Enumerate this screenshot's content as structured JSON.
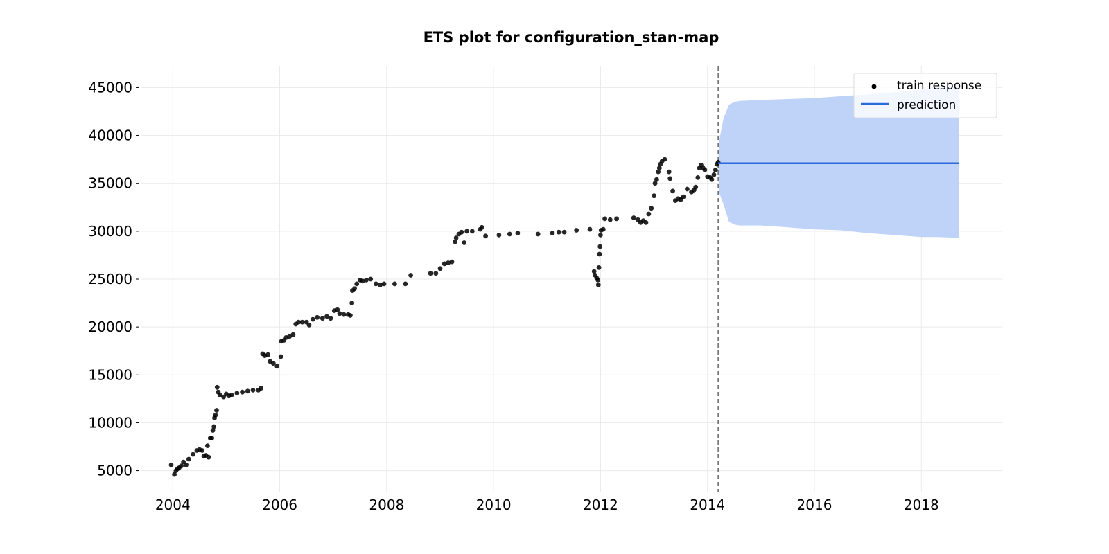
{
  "chart_data": {
    "type": "scatter",
    "title": "ETS plot for configuration_stan-map",
    "xlabel": "",
    "ylabel": "",
    "xlim": [
      2003.4,
      2019.5
    ],
    "ylim": [
      2800,
      47200
    ],
    "x_ticks": [
      "2004",
      "2006",
      "2008",
      "2010",
      "2012",
      "2014",
      "2016",
      "2018"
    ],
    "y_ticks": [
      "5000",
      "10000",
      "15000",
      "20000",
      "25000",
      "30000",
      "35000",
      "40000",
      "45000"
    ],
    "grid": true,
    "legend_position": "top-right",
    "forecast_start": 2014.2,
    "series": [
      {
        "name": "train response",
        "kind": "scatter",
        "color": "#000000",
        "points": [
          [
            2003.97,
            5600
          ],
          [
            2004.03,
            4600
          ],
          [
            2004.06,
            5000
          ],
          [
            2004.09,
            5200
          ],
          [
            2004.12,
            5300
          ],
          [
            2004.16,
            5500
          ],
          [
            2004.2,
            5900
          ],
          [
            2004.25,
            5600
          ],
          [
            2004.3,
            6200
          ],
          [
            2004.38,
            6700
          ],
          [
            2004.45,
            7100
          ],
          [
            2004.5,
            7200
          ],
          [
            2004.55,
            7100
          ],
          [
            2004.58,
            6500
          ],
          [
            2004.62,
            6600
          ],
          [
            2004.65,
            7600
          ],
          [
            2004.67,
            6400
          ],
          [
            2004.7,
            8400
          ],
          [
            2004.73,
            8400
          ],
          [
            2004.75,
            9200
          ],
          [
            2004.77,
            9600
          ],
          [
            2004.78,
            10500
          ],
          [
            2004.8,
            10800
          ],
          [
            2004.82,
            11300
          ],
          [
            2004.83,
            13700
          ],
          [
            2004.85,
            13200
          ],
          [
            2004.88,
            12900
          ],
          [
            2004.95,
            12700
          ],
          [
            2005.0,
            13000
          ],
          [
            2005.05,
            12800
          ],
          [
            2005.1,
            12900
          ],
          [
            2005.2,
            13100
          ],
          [
            2005.3,
            13200
          ],
          [
            2005.4,
            13300
          ],
          [
            2005.5,
            13400
          ],
          [
            2005.6,
            13400
          ],
          [
            2005.65,
            13600
          ],
          [
            2005.68,
            17200
          ],
          [
            2005.72,
            17000
          ],
          [
            2005.78,
            17100
          ],
          [
            2005.82,
            16400
          ],
          [
            2005.88,
            16200
          ],
          [
            2005.95,
            15900
          ],
          [
            2006.02,
            16900
          ],
          [
            2006.03,
            18500
          ],
          [
            2006.08,
            18600
          ],
          [
            2006.12,
            18900
          ],
          [
            2006.18,
            19000
          ],
          [
            2006.25,
            19200
          ],
          [
            2006.3,
            20300
          ],
          [
            2006.35,
            20500
          ],
          [
            2006.42,
            20500
          ],
          [
            2006.5,
            20500
          ],
          [
            2006.55,
            20200
          ],
          [
            2006.62,
            20800
          ],
          [
            2006.7,
            21000
          ],
          [
            2006.8,
            20900
          ],
          [
            2006.88,
            21100
          ],
          [
            2006.95,
            20900
          ],
          [
            2007.02,
            21700
          ],
          [
            2007.08,
            21800
          ],
          [
            2007.12,
            21400
          ],
          [
            2007.2,
            21300
          ],
          [
            2007.28,
            21300
          ],
          [
            2007.32,
            21200
          ],
          [
            2007.35,
            22500
          ],
          [
            2007.36,
            23800
          ],
          [
            2007.4,
            24000
          ],
          [
            2007.44,
            24500
          ],
          [
            2007.5,
            24900
          ],
          [
            2007.55,
            24800
          ],
          [
            2007.62,
            24900
          ],
          [
            2007.7,
            25000
          ],
          [
            2007.8,
            24500
          ],
          [
            2007.88,
            24400
          ],
          [
            2007.95,
            24500
          ],
          [
            2008.15,
            24500
          ],
          [
            2008.35,
            24500
          ],
          [
            2008.45,
            25400
          ],
          [
            2008.82,
            25600
          ],
          [
            2008.92,
            25600
          ],
          [
            2009.0,
            26100
          ],
          [
            2009.08,
            26600
          ],
          [
            2009.15,
            26700
          ],
          [
            2009.22,
            26800
          ],
          [
            2009.28,
            28900
          ],
          [
            2009.3,
            29300
          ],
          [
            2009.35,
            29700
          ],
          [
            2009.4,
            29900
          ],
          [
            2009.45,
            28800
          ],
          [
            2009.5,
            30000
          ],
          [
            2009.6,
            30000
          ],
          [
            2009.75,
            30200
          ],
          [
            2009.78,
            30400
          ],
          [
            2009.85,
            29500
          ],
          [
            2010.1,
            29600
          ],
          [
            2010.3,
            29700
          ],
          [
            2010.45,
            29800
          ],
          [
            2010.83,
            29700
          ],
          [
            2011.1,
            29800
          ],
          [
            2011.22,
            29900
          ],
          [
            2011.32,
            29900
          ],
          [
            2011.55,
            30100
          ],
          [
            2011.8,
            30200
          ],
          [
            2011.88,
            25800
          ],
          [
            2011.9,
            25400
          ],
          [
            2011.93,
            25100
          ],
          [
            2011.95,
            24900
          ],
          [
            2011.96,
            24400
          ],
          [
            2011.97,
            26200
          ],
          [
            2011.98,
            27600
          ],
          [
            2011.99,
            28400
          ],
          [
            2012.0,
            29600
          ],
          [
            2012.01,
            30100
          ],
          [
            2012.05,
            30200
          ],
          [
            2012.08,
            31300
          ],
          [
            2012.18,
            31200
          ],
          [
            2012.3,
            31300
          ],
          [
            2012.62,
            31400
          ],
          [
            2012.7,
            31200
          ],
          [
            2012.75,
            30900
          ],
          [
            2012.8,
            31100
          ],
          [
            2012.85,
            30900
          ],
          [
            2012.9,
            31800
          ],
          [
            2012.95,
            32400
          ],
          [
            2013.0,
            33700
          ],
          [
            2013.02,
            35000
          ],
          [
            2013.05,
            35400
          ],
          [
            2013.08,
            36200
          ],
          [
            2013.1,
            36600
          ],
          [
            2013.12,
            37000
          ],
          [
            2013.15,
            37300
          ],
          [
            2013.2,
            37500
          ],
          [
            2013.28,
            36200
          ],
          [
            2013.3,
            35500
          ],
          [
            2013.35,
            34200
          ],
          [
            2013.4,
            33200
          ],
          [
            2013.45,
            33400
          ],
          [
            2013.5,
            33300
          ],
          [
            2013.55,
            33600
          ],
          [
            2013.62,
            34400
          ],
          [
            2013.7,
            34100
          ],
          [
            2013.75,
            34300
          ],
          [
            2013.78,
            34600
          ],
          [
            2013.82,
            35600
          ],
          [
            2013.85,
            36600
          ],
          [
            2013.88,
            36900
          ],
          [
            2013.92,
            36600
          ],
          [
            2013.95,
            36400
          ],
          [
            2014.0,
            35700
          ],
          [
            2014.05,
            35600
          ],
          [
            2014.08,
            35400
          ],
          [
            2014.12,
            35900
          ],
          [
            2014.15,
            36400
          ],
          [
            2014.18,
            37000
          ],
          [
            2014.2,
            37200
          ]
        ]
      },
      {
        "name": "prediction",
        "kind": "line",
        "color": "#2969d9",
        "x": [
          2014.2,
          2018.7
        ],
        "y": [
          37100,
          37100
        ]
      },
      {
        "name": "",
        "kind": "band",
        "color": "#bfd3f8",
        "x": [
          2014.2,
          2014.22,
          2014.3,
          2014.4,
          2014.5,
          2014.6,
          2015.0,
          2015.5,
          2016.0,
          2016.5,
          2017.0,
          2017.5,
          2018.0,
          2018.3,
          2018.7
        ],
        "lower": [
          37000,
          34000,
          32800,
          31000,
          30700,
          30600,
          30600,
          30400,
          30200,
          30100,
          29800,
          29600,
          29400,
          29400,
          29300
        ],
        "upper": [
          37200,
          39500,
          41800,
          43200,
          43500,
          43600,
          43700,
          43800,
          43900,
          44100,
          44300,
          44500,
          44800,
          45100,
          45300
        ]
      }
    ]
  }
}
